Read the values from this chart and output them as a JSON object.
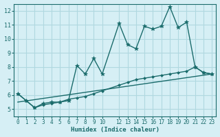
{
  "xlabel": "Humidex (Indice chaleur)",
  "ylabel": "",
  "background_color": "#d6eff5",
  "grid_color": "#b0d8e0",
  "line_color": "#1a6b6b",
  "xlim": [
    -0.5,
    23.5
  ],
  "ylim": [
    4.5,
    12.5
  ],
  "x_ticks": [
    0,
    1,
    2,
    3,
    4,
    5,
    6,
    7,
    8,
    9,
    10,
    12,
    13,
    14,
    15,
    16,
    17,
    18,
    19,
    20,
    21,
    22,
    23
  ],
  "x_tick_labels": [
    "0",
    "1",
    "2",
    "3",
    "4",
    "5",
    "6",
    "7",
    "8",
    "9",
    "10",
    "12",
    "13",
    "14",
    "15",
    "16",
    "17",
    "18",
    "19",
    "20",
    "21",
    "22",
    "23"
  ],
  "y_ticks": [
    5,
    6,
    7,
    8,
    9,
    10,
    11,
    12
  ],
  "y_tick_labels": [
    "5",
    "6",
    "7",
    "8",
    "9",
    "10",
    "11",
    "12"
  ],
  "series1_x": [
    0,
    1,
    2,
    3,
    4,
    5,
    6,
    7,
    8,
    9,
    10,
    12,
    13,
    14,
    15,
    16,
    17,
    18,
    19,
    20,
    21,
    22,
    23
  ],
  "series1_y": [
    6.1,
    5.6,
    5.1,
    5.4,
    5.5,
    5.5,
    5.6,
    8.1,
    7.5,
    8.6,
    7.5,
    11.1,
    9.6,
    9.3,
    10.9,
    10.7,
    10.9,
    12.3,
    10.8,
    11.2,
    8.0,
    7.6,
    7.5
  ],
  "series2_x": [
    0,
    1,
    2,
    3,
    4,
    5,
    6,
    7,
    8,
    9,
    10,
    12,
    13,
    14,
    15,
    16,
    17,
    18,
    19,
    20,
    21,
    22,
    23
  ],
  "series2_y": [
    6.1,
    5.6,
    5.1,
    5.3,
    5.4,
    5.5,
    5.7,
    5.8,
    5.9,
    6.1,
    6.3,
    6.7,
    6.9,
    7.1,
    7.2,
    7.3,
    7.4,
    7.5,
    7.6,
    7.7,
    8.0,
    7.6,
    7.5
  ],
  "series3_x": [
    0,
    23
  ],
  "series3_y": [
    5.5,
    7.5
  ]
}
